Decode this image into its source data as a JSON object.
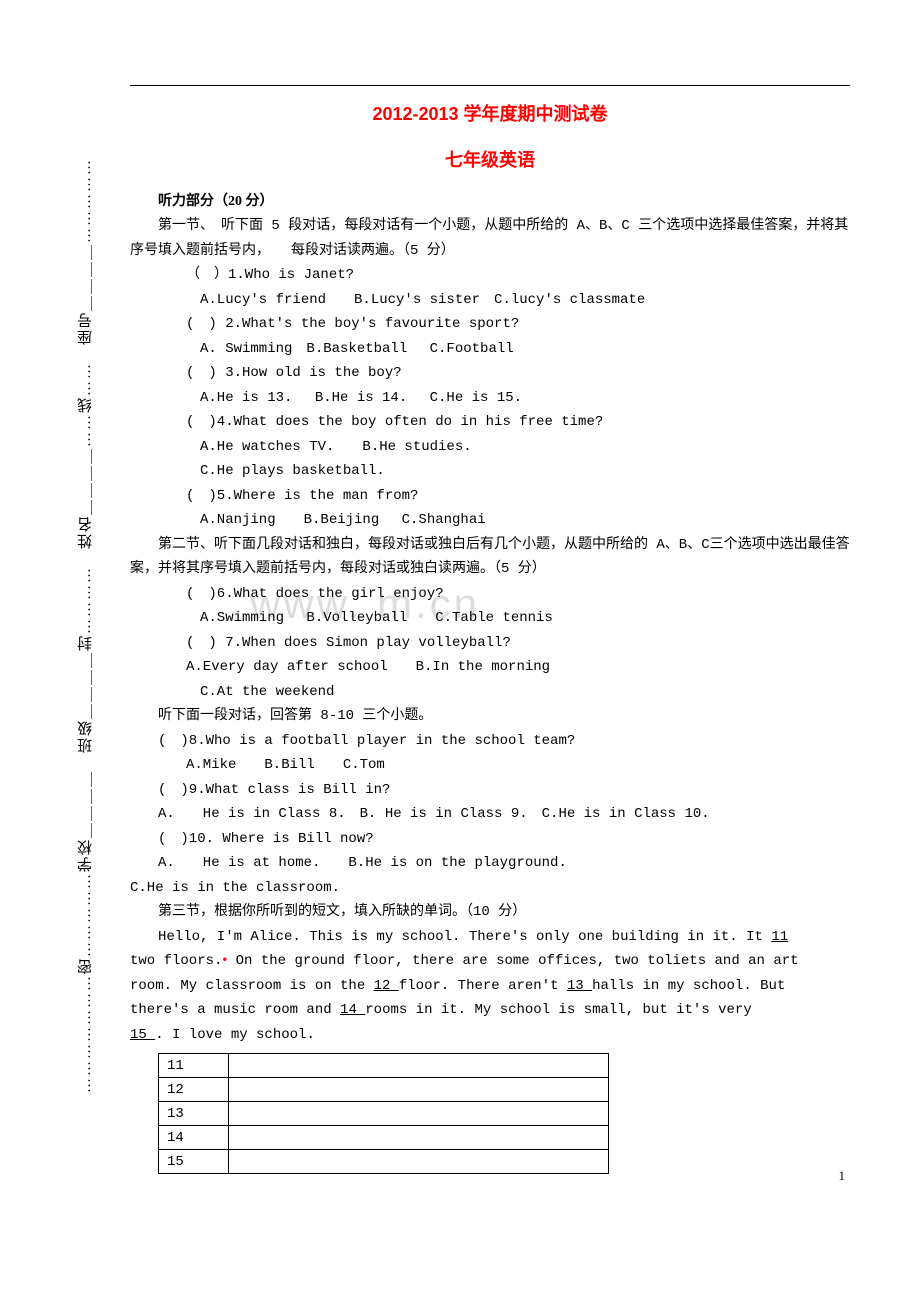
{
  "title_main": "2012-2013 学年度期中测试卷",
  "title_sub": "七年级英语",
  "sidebar": {
    "school_label": "学校",
    "class_label": "班级",
    "name_label": "姓名",
    "seat_label": "座号",
    "seal_text": "密",
    "seal_text2": "封",
    "seal_text3": "线"
  },
  "listening": {
    "header": "听力部分（20 分）",
    "section1_intro": "第一节、　听下面 5 段对话，每段对话有一个小题，从题中所给的 A、B、C 三个选项中选择最佳答案，并将其序号填入题前括号内，　　每段对话读两遍。（5 分）",
    "q1": {
      "stem": "（　）1.Who is Janet?",
      "opts": "A.Lucy's friend　　B.Lucy's sister　C.lucy's classmate"
    },
    "q2": {
      "stem": "(　) 2.What's the boy's favourite sport?",
      "opts": "A. Swimming　B.Basketball　 C.Football"
    },
    "q3": {
      "stem": "(　) 3.How old is the boy?",
      "opts": "A.He is 13.　 B.He is 14.　 C.He is 15."
    },
    "q4": {
      "stem": "(　)4.What does the boy often do in his free time?",
      "opts1": "A.He watches TV.　　B.He studies.",
      "opts2": "C.He plays basketball."
    },
    "q5": {
      "stem": "(　)5.Where is the man from?",
      "opts": "A.Nanjing　　B.Beijing　 C.Shanghai"
    },
    "section2_intro": "第二节、听下面几段对话和独白，每段对话或独白后有几个小题，从题中所给的 A、B、C三个选项中选出最佳答案，并将其序号填入题前括号内，每段对话或独白读两遍。（5 分）",
    "q6": {
      "stem": "(　)6.What does the girl enjoy?",
      "opts": "A.Swimming　 B.Volleyball　　C.Table tennis"
    },
    "q7": {
      "stem": "(　) 7.When does Simon play volleyball?",
      "opts1": "A.Every day after school　　B.In the morning",
      "opts2": "C.At the weekend"
    },
    "listen_dialog": "听下面一段对话，回答第 8-10 三个小题。",
    "q8": {
      "stem": "(　)8.Who is a football player in the school team?",
      "opts": "A.Mike　　B.Bill　　C.Tom"
    },
    "q9": {
      "stem": "(　)9.What class is Bill in?",
      "opts": "A.　　He is in Class 8.　B. He is in Class 9.　C.He is in Class 10."
    },
    "q10": {
      "stem": "(　)10. Where is Bill now?",
      "opts1": "A.　　He is at home.　　B.He is on the playground.",
      "opts2": "C.He is in the classroom."
    },
    "section3_intro": "第三节，根据你所听到的短文，填入所缺的单词。（10 分）",
    "passage_l1_a": "Hello, I'm Alice. This is my school. There's only one building in it. It ",
    "passage_l1_b": " 11 ",
    "passage_l2_a": "two floors.",
    "passage_l2_b": " On the ground floor, there are some offices, two toliets and an art",
    "passage_l3_a": "room. My classroom is on the ",
    "passage_l3_b": " 12  ",
    "passage_l3_c": "floor. There aren't ",
    "passage_l3_d": " 13  ",
    "passage_l3_e": " halls in my school. But",
    "passage_l4_a": "there's a music room and ",
    "passage_l4_b": " 14  ",
    "passage_l4_c": "  rooms in it. My school is small, but it's very",
    "passage_l5_a": "15  ",
    "passage_l5_b": ".  I love my school."
  },
  "table": {
    "rows": [
      "11",
      "12",
      "13",
      "14",
      "15"
    ]
  },
  "watermark": "www.          m.cn",
  "page_number": "1"
}
